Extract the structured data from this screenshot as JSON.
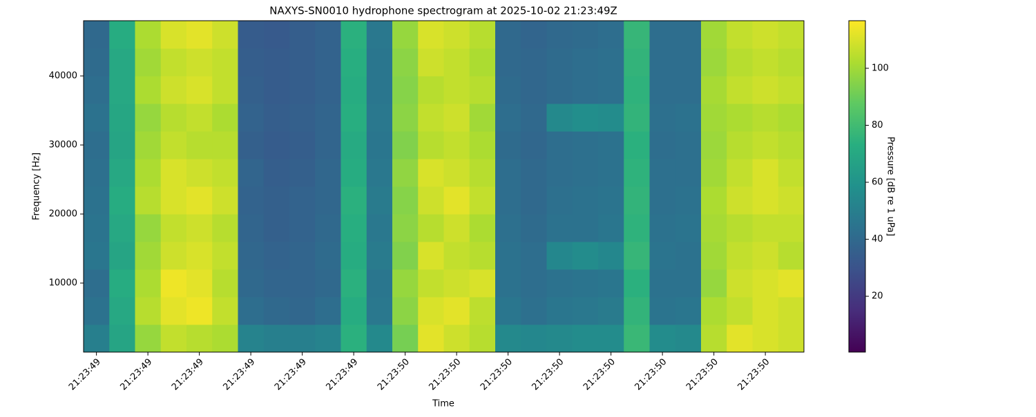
{
  "chart_data": {
    "type": "heatmap",
    "title": "NAXYS-SN0010 hydrophone spectrogram at 2025-10-02 21:23:49Z",
    "xlabel": "Time",
    "ylabel": "Frequency [Hz]",
    "colorbar_label": "Pressure [dB re 1 uPa]",
    "colormap": "viridis",
    "x": [
      49.45,
      49.5,
      49.55,
      49.6,
      49.65,
      49.7,
      49.75,
      49.8,
      49.85,
      49.9,
      49.95,
      50.0,
      50.05,
      50.1,
      50.15,
      50.2,
      50.25,
      50.3,
      50.35,
      50.4,
      50.45,
      50.5,
      50.55,
      50.6,
      50.65,
      50.7,
      50.75,
      50.8
    ],
    "y": [
      2000,
      6000,
      10000,
      14000,
      18000,
      22000,
      26000,
      30000,
      34000,
      38000,
      42000,
      46000
    ],
    "z": [
      [
        50,
        68,
        98,
        106,
        104,
        102,
        52,
        50,
        50,
        52,
        74,
        55,
        92,
        112,
        108,
        104,
        55,
        54,
        55,
        56,
        56,
        78,
        56,
        55,
        104,
        112,
        110,
        108
      ],
      [
        44,
        70,
        104,
        112,
        114,
        106,
        42,
        40,
        39,
        42,
        72,
        47,
        96,
        110,
        112,
        105,
        46,
        43,
        46,
        47,
        48,
        76,
        45,
        46,
        102,
        106,
        110,
        108
      ],
      [
        42,
        72,
        102,
        114,
        112,
        104,
        40,
        38,
        38,
        40,
        74,
        46,
        98,
        106,
        108,
        110,
        44,
        42,
        44,
        45,
        46,
        74,
        44,
        44,
        98,
        108,
        110,
        112
      ],
      [
        46,
        68,
        100,
        108,
        110,
        106,
        39,
        37,
        38,
        41,
        72,
        48,
        94,
        110,
        106,
        104,
        44,
        42,
        54,
        56,
        54,
        77,
        45,
        44,
        100,
        106,
        108,
        104
      ],
      [
        45,
        70,
        98,
        106,
        108,
        104,
        38,
        36,
        37,
        40,
        73,
        47,
        96,
        104,
        108,
        102,
        43,
        41,
        44,
        44,
        46,
        75,
        44,
        45,
        101,
        104,
        106,
        106
      ],
      [
        44,
        72,
        104,
        110,
        112,
        108,
        37,
        36,
        37,
        39,
        74,
        48,
        95,
        108,
        112,
        106,
        42,
        40,
        43,
        44,
        45,
        76,
        43,
        44,
        102,
        108,
        110,
        108
      ],
      [
        43,
        70,
        102,
        110,
        108,
        106,
        38,
        35,
        36,
        39,
        72,
        47,
        97,
        110,
        108,
        104,
        42,
        40,
        42,
        43,
        44,
        75,
        43,
        43,
        100,
        106,
        110,
        106
      ],
      [
        42,
        68,
        100,
        106,
        104,
        104,
        36,
        34,
        35,
        38,
        71,
        46,
        94,
        104,
        106,
        102,
        41,
        39,
        42,
        43,
        44,
        74,
        42,
        43,
        99,
        104,
        106,
        104
      ],
      [
        44,
        69,
        98,
        104,
        106,
        102,
        37,
        35,
        36,
        38,
        73,
        47,
        96,
        106,
        108,
        100,
        42,
        40,
        55,
        57,
        56,
        76,
        43,
        44,
        100,
        102,
        104,
        102
      ],
      [
        42,
        70,
        102,
        108,
        110,
        106,
        36,
        34,
        35,
        37,
        72,
        46,
        95,
        104,
        106,
        104,
        41,
        39,
        41,
        42,
        43,
        75,
        42,
        42,
        101,
        106,
        108,
        106
      ],
      [
        41,
        70,
        100,
        106,
        108,
        106,
        35,
        34,
        35,
        37,
        73,
        46,
        96,
        108,
        106,
        102,
        40,
        39,
        41,
        42,
        43,
        76,
        42,
        42,
        99,
        104,
        106,
        104
      ],
      [
        40,
        72,
        102,
        110,
        112,
        108,
        34,
        33,
        35,
        37,
        74,
        47,
        98,
        110,
        108,
        104,
        40,
        38,
        40,
        41,
        42,
        77,
        42,
        42,
        100,
        106,
        108,
        106
      ]
    ],
    "xlim": [
      49.425,
      50.825
    ],
    "xticks": [
      {
        "value": 49.45,
        "label": "21:23:49"
      },
      {
        "value": 49.55,
        "label": "21:23:49"
      },
      {
        "value": 49.65,
        "label": "21:23:49"
      },
      {
        "value": 49.75,
        "label": "21:23:49"
      },
      {
        "value": 49.85,
        "label": "21:23:49"
      },
      {
        "value": 49.95,
        "label": "21:23:49"
      },
      {
        "value": 50.05,
        "label": "21:23:50"
      },
      {
        "value": 50.15,
        "label": "21:23:50"
      },
      {
        "value": 50.25,
        "label": "21:23:50"
      },
      {
        "value": 50.35,
        "label": "21:23:50"
      },
      {
        "value": 50.45,
        "label": "21:23:50"
      },
      {
        "value": 50.55,
        "label": "21:23:50"
      },
      {
        "value": 50.65,
        "label": "21:23:50"
      },
      {
        "value": 50.75,
        "label": "21:23:50"
      }
    ],
    "ylim": [
      0,
      48000
    ],
    "yticks": [
      10000,
      20000,
      30000,
      40000
    ],
    "clim": [
      0.4,
      116.7
    ],
    "cticks": [
      20,
      40,
      60,
      80,
      100
    ]
  }
}
